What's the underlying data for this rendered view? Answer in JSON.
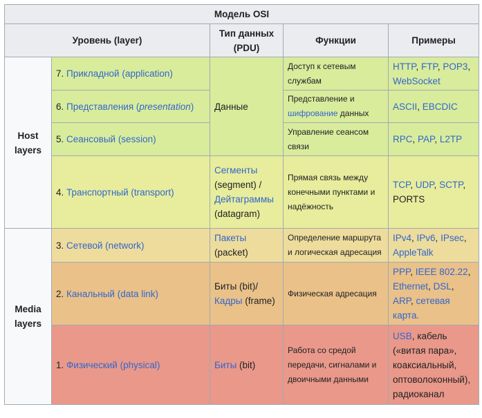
{
  "caption": "Модель OSI",
  "headers": {
    "level": "Уровень (layer)",
    "pdu": "Тип данных (PDU)",
    "functions": "Функции",
    "examples": "Примеры"
  },
  "groups": {
    "host": "Host layers",
    "media": "Media layers"
  },
  "rows": {
    "app": {
      "num": "7. ",
      "name": "Прикладной (application)",
      "func": "Доступ к сетевым службам",
      "ex": [
        "HTTP",
        ", ",
        "FTP",
        ", ",
        "POP3",
        ", ",
        "WebSocket"
      ]
    },
    "pres": {
      "num": "6. ",
      "name_a": "Представления (",
      "name_b": "presentation",
      "name_c": ")",
      "func_a": "Представление и ",
      "func_link": "шифрование",
      "func_b": " данных",
      "ex": [
        "ASCII",
        ", ",
        "EBCDIC"
      ]
    },
    "sess": {
      "num": "5. ",
      "name": "Сеансовый (session)",
      "func": "Управление сеансом связи",
      "ex": [
        "RPC",
        ", ",
        "PAP",
        ", ",
        "L2TP"
      ]
    },
    "upper_pdu": "Данные",
    "trans": {
      "num": "4. ",
      "name": "Транспортный (transport)",
      "pdu_link1": "Сегменты",
      "pdu_t1": " (segment) / ",
      "pdu_link2": "Дейтаграммы",
      "pdu_t2": " (datagram)",
      "func": "Прямая связь между конечными пунктами и надёжность",
      "ex": [
        "TCP",
        ", ",
        "UDP",
        ", ",
        "SCTP",
        ", ",
        "PORTS"
      ]
    },
    "net": {
      "num": "3. ",
      "name": "Сетевой (network)",
      "pdu_link": "Пакеты",
      "pdu_t": " (packet)",
      "func": "Определение маршрута и логическая адресация",
      "ex": [
        "IPv4",
        ", ",
        "IPv6",
        ", ",
        "IPsec",
        ", ",
        "AppleTalk"
      ]
    },
    "dl": {
      "num": "2. ",
      "name": "Канальный (data link)",
      "pdu_t1": "Биты (bit)/ ",
      "pdu_link": "Кадры",
      "pdu_t2": " (frame)",
      "func": "Физическая адресация",
      "ex": [
        "PPP",
        ", ",
        "IEEE 802.22",
        ", ",
        "Ethernet",
        ", ",
        "DSL",
        ", ",
        "ARP",
        ", ",
        "сетевая карта."
      ]
    },
    "ph": {
      "num": "1. ",
      "name": "Физический (physical)",
      "pdu_link": "Биты",
      "pdu_t": " (bit)",
      "func": "Работа со средой передачи, сигналами и двоичными данными",
      "ex": [
        "USB",
        ", кабель («витая пара», коаксиальный, оптоволоконный), радиоканал"
      ]
    }
  },
  "colors": {
    "app": "#d8ec9c",
    "trans": "#e7ed9c",
    "net": "#eddc9c",
    "dl": "#e9c189",
    "ph": "#e9988a",
    "link": "#3366cc",
    "header": "#eaecf0",
    "border": "#a2a9b1"
  }
}
